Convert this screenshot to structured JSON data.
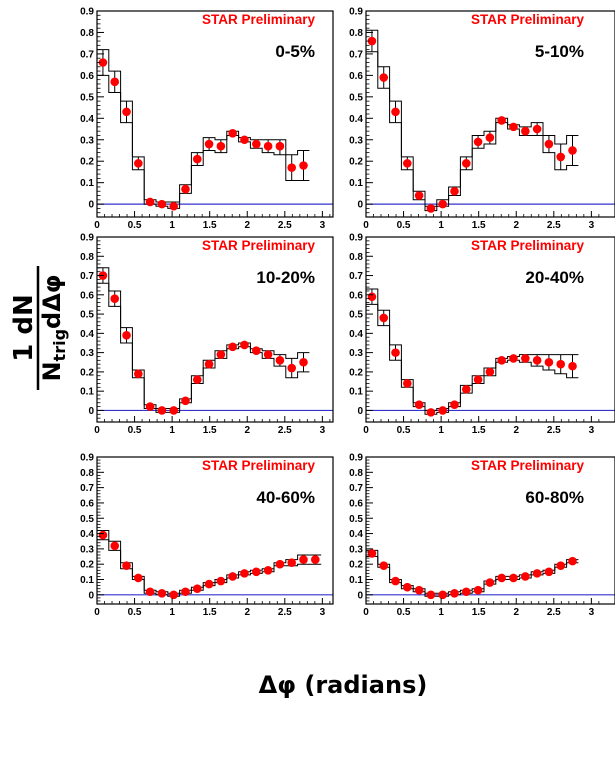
{
  "chart_data": {
    "type": "scatter",
    "xlabel": "Δφ (radians)",
    "ylabel_numerator": "1   dN",
    "ylabel_denominator_main": "N",
    "ylabel_denominator_sub": "trig",
    "ylabel_denominator_rest": "dΔφ",
    "annotation": "STAR Preliminary",
    "xlim": [
      0,
      3.1416
    ],
    "ylim": [
      -0.06,
      0.9
    ],
    "x_ticks": [
      0,
      0.5,
      1,
      1.5,
      2,
      2.5,
      3
    ],
    "x_tick_labels": [
      "0",
      "0.5",
      "1",
      "1.5",
      "2",
      "2.5",
      "3"
    ],
    "y_ticks": [
      0,
      0.1,
      0.2,
      0.3,
      0.4,
      0.5,
      0.6,
      0.7,
      0.8,
      0.9
    ],
    "y_tick_labels": [
      "0",
      "0.1",
      "0.2",
      "0.3",
      "0.4",
      "0.5",
      "0.6",
      "0.7",
      "0.8",
      "0.9"
    ],
    "x_points": [
      0.079,
      0.236,
      0.393,
      0.55,
      0.707,
      0.864,
      1.021,
      1.178,
      1.335,
      1.492,
      1.649,
      1.806,
      1.963,
      2.121,
      2.278,
      2.435,
      2.592,
      2.749,
      2.906,
      3.063
    ],
    "marker_color": "#ff0000",
    "baseline_color": "#3333cc",
    "panels": [
      {
        "label": "0-5%",
        "values": [
          0.66,
          0.57,
          0.43,
          0.19,
          0.01,
          0.0,
          -0.01,
          0.07,
          0.21,
          0.28,
          0.27,
          0.33,
          0.3,
          0.28,
          0.27,
          0.27,
          0.17,
          0.18
        ],
        "upper": [
          0.72,
          0.62,
          0.48,
          0.22,
          0.02,
          0.01,
          0.01,
          0.09,
          0.24,
          0.31,
          0.3,
          0.34,
          0.31,
          0.3,
          0.3,
          0.3,
          0.23,
          0.25
        ],
        "lower": [
          0.6,
          0.52,
          0.38,
          0.16,
          0.0,
          -0.01,
          -0.02,
          0.05,
          0.18,
          0.25,
          0.24,
          0.32,
          0.29,
          0.26,
          0.24,
          0.23,
          0.11,
          0.11
        ]
      },
      {
        "label": "5-10%",
        "values": [
          0.76,
          0.59,
          0.43,
          0.19,
          0.04,
          -0.02,
          0.0,
          0.06,
          0.19,
          0.29,
          0.31,
          0.39,
          0.36,
          0.34,
          0.35,
          0.28,
          0.22,
          0.25
        ],
        "upper": [
          0.81,
          0.64,
          0.48,
          0.22,
          0.06,
          -0.01,
          0.02,
          0.08,
          0.22,
          0.32,
          0.34,
          0.4,
          0.37,
          0.36,
          0.38,
          0.32,
          0.28,
          0.32
        ],
        "lower": [
          0.71,
          0.54,
          0.38,
          0.16,
          0.02,
          -0.03,
          -0.01,
          0.04,
          0.16,
          0.26,
          0.28,
          0.38,
          0.35,
          0.32,
          0.32,
          0.24,
          0.16,
          0.18
        ]
      },
      {
        "label": "10-20%",
        "values": [
          0.7,
          0.58,
          0.39,
          0.19,
          0.02,
          0.0,
          0.0,
          0.05,
          0.16,
          0.24,
          0.29,
          0.33,
          0.34,
          0.31,
          0.29,
          0.26,
          0.22,
          0.25
        ],
        "upper": [
          0.74,
          0.62,
          0.43,
          0.21,
          0.03,
          0.01,
          0.01,
          0.06,
          0.18,
          0.26,
          0.31,
          0.34,
          0.35,
          0.32,
          0.31,
          0.29,
          0.27,
          0.3
        ],
        "lower": [
          0.66,
          0.54,
          0.35,
          0.17,
          0.01,
          -0.01,
          -0.01,
          0.04,
          0.14,
          0.22,
          0.27,
          0.32,
          0.33,
          0.3,
          0.27,
          0.23,
          0.17,
          0.2
        ]
      },
      {
        "label": "20-40%",
        "values": [
          0.59,
          0.48,
          0.3,
          0.14,
          0.03,
          -0.01,
          0.0,
          0.03,
          0.11,
          0.16,
          0.2,
          0.26,
          0.27,
          0.27,
          0.26,
          0.25,
          0.24,
          0.23
        ],
        "upper": [
          0.63,
          0.52,
          0.34,
          0.16,
          0.04,
          0.0,
          0.01,
          0.04,
          0.13,
          0.18,
          0.22,
          0.27,
          0.28,
          0.29,
          0.29,
          0.29,
          0.29,
          0.29
        ],
        "lower": [
          0.55,
          0.44,
          0.26,
          0.12,
          0.02,
          -0.02,
          -0.01,
          0.02,
          0.09,
          0.14,
          0.18,
          0.25,
          0.26,
          0.25,
          0.23,
          0.21,
          0.19,
          0.17
        ]
      },
      {
        "label": "40-60%",
        "values": [
          0.39,
          0.32,
          0.19,
          0.11,
          0.02,
          0.01,
          0.0,
          0.02,
          0.04,
          0.07,
          0.09,
          0.12,
          0.14,
          0.15,
          0.16,
          0.2,
          0.21,
          0.23,
          0.23
        ],
        "upper": [
          0.42,
          0.35,
          0.21,
          0.12,
          0.03,
          0.02,
          0.01,
          0.03,
          0.05,
          0.08,
          0.1,
          0.13,
          0.15,
          0.16,
          0.17,
          0.21,
          0.23,
          0.26,
          0.26
        ],
        "lower": [
          0.36,
          0.29,
          0.17,
          0.1,
          0.01,
          0.0,
          -0.01,
          0.01,
          0.03,
          0.06,
          0.08,
          0.11,
          0.13,
          0.14,
          0.15,
          0.19,
          0.19,
          0.2,
          0.2
        ]
      },
      {
        "label": "60-80%",
        "values": [
          0.27,
          0.19,
          0.09,
          0.05,
          0.03,
          0.0,
          0.0,
          0.01,
          0.02,
          0.03,
          0.08,
          0.11,
          0.11,
          0.12,
          0.14,
          0.15,
          0.19,
          0.22
        ],
        "upper": [
          0.29,
          0.2,
          0.1,
          0.06,
          0.04,
          0.01,
          0.01,
          0.02,
          0.03,
          0.04,
          0.09,
          0.12,
          0.12,
          0.13,
          0.15,
          0.16,
          0.2,
          0.23
        ],
        "lower": [
          0.25,
          0.18,
          0.08,
          0.04,
          0.02,
          -0.01,
          -0.01,
          0.0,
          0.01,
          0.02,
          0.07,
          0.1,
          0.1,
          0.11,
          0.13,
          0.14,
          0.18,
          0.21
        ]
      }
    ]
  }
}
